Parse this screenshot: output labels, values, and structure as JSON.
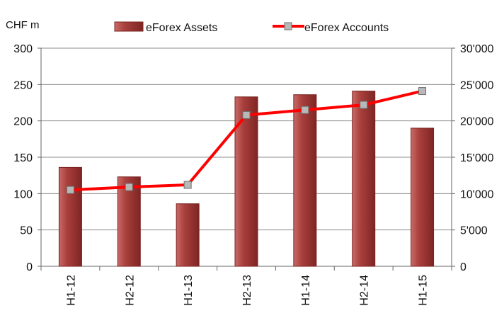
{
  "chart_data": {
    "type": "bar+line",
    "y_unit_label": "CHF m",
    "categories": [
      "H1-12",
      "H2-12",
      "H1-13",
      "H2-13",
      "H1-14",
      "H2-14",
      "H1-15"
    ],
    "series": [
      {
        "name": "eForex Assets",
        "type": "bar",
        "axis": "left",
        "color": "#a43c3a",
        "values": [
          136,
          123,
          86,
          233,
          236,
          241,
          190
        ]
      },
      {
        "name": "eForex Accounts",
        "type": "line",
        "axis": "right",
        "color": "#ff0000",
        "marker_color": "#b8b8b8",
        "values": [
          10500,
          10900,
          11200,
          20800,
          21500,
          22200,
          24100
        ]
      }
    ],
    "y_left": {
      "lim": [
        0,
        300
      ],
      "ticks": [
        "0",
        "50",
        "100",
        "150",
        "200",
        "250",
        "300"
      ]
    },
    "y_right": {
      "lim": [
        0,
        30000
      ],
      "ticks": [
        "0",
        "5'000",
        "10'000",
        "15'000",
        "20'000",
        "25'000",
        "30'000"
      ]
    },
    "grid": true,
    "legend": "top-center"
  }
}
